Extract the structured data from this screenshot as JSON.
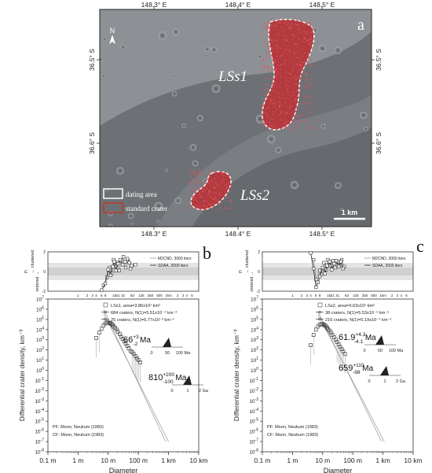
{
  "map": {
    "panel_label": "a",
    "lon_labels": [
      "148.3° E",
      "148.4° E",
      "148.5° E"
    ],
    "lat_labels": [
      "36.5° S",
      "36.6° S"
    ],
    "north_label": "N",
    "area1_label": "LSs1",
    "area2_label": "LSs2",
    "legend": {
      "dating": "dating area",
      "crater": "standard crater"
    },
    "scale_label": "1 km"
  },
  "chart_data": [
    {
      "type": "scatter",
      "panel": "b",
      "title": "",
      "xlabel": "Diameter",
      "ylabel": "Differential crater density, km⁻³",
      "x_ticks": [
        "0.1 m",
        "1 m",
        "10 m",
        "100 m",
        "1 km",
        "10 km"
      ],
      "y_exponents": [
        "7",
        "6",
        "5",
        "4",
        "3",
        "2",
        "1",
        "0",
        "-1",
        "-2",
        "-3",
        "-4",
        "-5",
        "-6",
        "-7",
        "-8"
      ],
      "xlim": [
        0.1,
        10000
      ],
      "ylim": [
        1e-08,
        10000000.0
      ],
      "legend": [
        "LSs1, area=3.86x10¹ km²",
        "684 craters, N(1)=5.51x10⁻⁴ km⁻²",
        "25 craters, N(1)=6.77x10⁻³ km⁻²"
      ],
      "age1": {
        "value": "66",
        "plus": "+3",
        "minus": "-2",
        "unit": "Ma"
      },
      "age1_ticks": [
        "0",
        "50",
        "100 Ma"
      ],
      "age2": {
        "value": "810",
        "plus": "+200",
        "minus": "-100",
        "unit": "Ma"
      },
      "age2_ticks": [
        "0",
        "1",
        "2 Ga"
      ],
      "footer": [
        "PF: Moon, Neukum (1983)",
        "CF: Moon, Neukum (1983)"
      ],
      "series": [
        {
          "x": [
            4,
            5,
            6,
            7,
            8,
            9,
            10,
            11,
            12,
            13,
            14,
            15,
            17,
            19,
            21,
            24,
            27,
            30,
            34,
            38,
            43,
            48,
            55,
            62,
            70,
            80,
            90,
            100,
            115
          ],
          "y": [
            1500.0,
            5000.0,
            12000.0,
            25000.0,
            40000.0,
            50000.0,
            50000.0,
            45000.0,
            40000.0,
            35000.0,
            28000.0,
            20000.0,
            15000.0,
            10000.0,
            6000.0,
            3500.0,
            2000.0,
            1200.0,
            700,
            400,
            250,
            150,
            80,
            60,
            40,
            25,
            15,
            10,
            6
          ]
        }
      ],
      "fit_lines": [
        {
          "x": [
            7,
            800
          ],
          "y": [
            1000000.0,
            1e-07
          ]
        },
        {
          "x": [
            7,
            1000
          ],
          "y": [
            400000.0,
            1e-07
          ]
        }
      ],
      "randomness": {
        "y_label": "n",
        "up_label": "← clustered",
        "down_label": "ordered →",
        "x_ticks": [
          "1",
          "2",
          "3",
          "4",
          "6",
          "8",
          "16",
          "21",
          "31",
          "63",
          "125",
          "250",
          "500",
          "1km",
          "2",
          "3",
          "4",
          "6"
        ],
        "legend": [
          "M2CND, 3000 iters",
          "SDAA, 3000 iters"
        ],
        "series1": [
          [
            6,
            -1.9
          ],
          [
            8,
            -1.2
          ],
          [
            10,
            0.2
          ],
          [
            12,
            -0.4
          ],
          [
            14,
            0.5
          ],
          [
            16,
            1.0
          ],
          [
            18,
            0.1
          ],
          [
            21,
            0.8
          ],
          [
            25,
            1.2
          ],
          [
            30,
            0.7
          ],
          [
            36,
            1.0
          ],
          [
            43,
            1.3
          ],
          [
            50,
            0.9
          ],
          [
            60,
            0.6
          ]
        ],
        "series2": [
          [
            7,
            -1.4
          ],
          [
            9,
            -0.6
          ],
          [
            11,
            0.4
          ],
          [
            13,
            -0.2
          ],
          [
            15,
            1.2
          ],
          [
            17,
            0.5
          ],
          [
            20,
            0.9
          ],
          [
            23,
            0.1
          ],
          [
            27,
            1.1
          ],
          [
            32,
            1.5
          ],
          [
            38,
            0.4
          ],
          [
            45,
            1.1
          ],
          [
            55,
            0.3
          ],
          [
            80,
            0.7
          ]
        ]
      }
    },
    {
      "type": "scatter",
      "panel": "c",
      "title": "",
      "xlabel": "Diameter",
      "ylabel": "Differential crater density, km⁻³",
      "x_ticks": [
        "0.1 m",
        "1 m",
        "10 m",
        "100 m",
        "1 km",
        "10 km"
      ],
      "y_exponents": [
        "7",
        "6",
        "5",
        "4",
        "3",
        "2",
        "1",
        "0",
        "-1",
        "-2",
        "-3",
        "-4",
        "-5",
        "-6",
        "-7",
        "-8"
      ],
      "xlim": [
        0.1,
        10000
      ],
      "ylim": [
        1e-08,
        10000000.0
      ],
      "legend": [
        "LSs2, area=9.63x10¹ km²",
        "38 craters, N(1)=5.53x10⁻⁵ km⁻²",
        "216 craters, N(1)=5.19x10⁻⁴ km⁻²"
      ],
      "age1": {
        "value": "61.9",
        "plus": "+4.3",
        "minus": "-4.1",
        "unit": "Ma"
      },
      "age1_ticks": [
        "0",
        "50",
        "100 Ma"
      ],
      "age2": {
        "value": "659",
        "plus": "+110",
        "minus": "-98",
        "unit": "Ma"
      },
      "age2_ticks": [
        "0",
        "1",
        "2 Ga"
      ],
      "footer": [
        "PF: Moon, Neukum (1983)",
        "CF: Moon, Neukum (1983)"
      ],
      "series": [
        {
          "x": [
            4,
            5,
            6,
            7,
            8,
            9,
            10,
            11,
            12,
            13,
            14,
            15,
            17,
            19,
            21,
            24,
            27,
            30,
            34,
            38,
            43,
            48,
            55
          ],
          "y": [
            300,
            3000.0,
            10000.0,
            20000.0,
            30000.0,
            35000.0,
            35000.0,
            30000.0,
            25000.0,
            20000.0,
            15000.0,
            11000.0,
            8000.0,
            5000.0,
            3000.0,
            1800.0,
            1000.0,
            600,
            350,
            200,
            120,
            70,
            40
          ]
        }
      ],
      "fit_lines": [
        {
          "x": [
            7,
            900
          ],
          "y": [
            600000.0,
            1e-07
          ]
        },
        {
          "x": [
            7,
            1100
          ],
          "y": [
            300000.0,
            1e-07
          ]
        }
      ],
      "randomness": {
        "y_label": "n",
        "up_label": "← clustered",
        "down_label": "ordered →",
        "x_ticks": [
          "1",
          "2",
          "3",
          "4",
          "6",
          "8",
          "16",
          "21",
          "31",
          "63",
          "125",
          "250",
          "500",
          "1km",
          "2",
          "3",
          "4",
          "6"
        ],
        "legend": [
          "M2CND, 3000 iters",
          "SDAA, 3000 iters"
        ],
        "series1": [
          [
            4,
            1.9
          ],
          [
            5,
            0.3
          ],
          [
            6,
            -1.6
          ],
          [
            7,
            -1.1
          ],
          [
            8,
            -0.5
          ],
          [
            10,
            0.4
          ],
          [
            12,
            -0.2
          ],
          [
            14,
            0.6
          ],
          [
            17,
            1.0
          ],
          [
            20,
            0.2
          ],
          [
            24,
            0.8
          ],
          [
            28,
            1.1
          ],
          [
            34,
            0.5
          ],
          [
            40,
            1.0
          ],
          [
            48,
            0.3
          ]
        ],
        "series2": [
          [
            5,
            1.2
          ],
          [
            6,
            -0.8
          ],
          [
            8,
            0.1
          ],
          [
            9,
            -0.3
          ],
          [
            11,
            0.9
          ],
          [
            13,
            0.2
          ],
          [
            15,
            1.2
          ],
          [
            18,
            0.6
          ],
          [
            22,
            1.1
          ],
          [
            26,
            0.4
          ],
          [
            31,
            1.0
          ],
          [
            36,
            0.6
          ],
          [
            43,
            1.2
          ],
          [
            52,
            0.5
          ]
        ]
      }
    }
  ],
  "panels": {
    "b": "b",
    "c": "c"
  }
}
